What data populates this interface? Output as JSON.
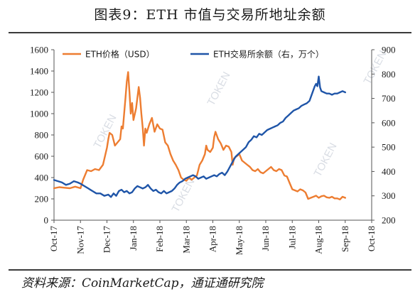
{
  "header": {
    "title": "图表9：ETH 市值与交易所地址余额"
  },
  "footer": {
    "source": "资料来源：CoinMarketCap，通证通研究院"
  },
  "watermark": {
    "text": "TOKEN"
  },
  "chart_data": {
    "type": "line",
    "x_labels": [
      "Oct-17",
      "Nov-17",
      "Dec-17",
      "Jan-18",
      "Feb-18",
      "Mar-18",
      "Apr-18",
      "May-18",
      "Jun-18",
      "Jul-18",
      "Aug-18",
      "Sep-18",
      "Oct-18"
    ],
    "left_axis": {
      "min": 0,
      "max": 1600,
      "step": 200
    },
    "right_axis": {
      "min": 200,
      "max": 900,
      "step": 100
    },
    "legend_position": "top",
    "grid": false,
    "series": [
      {
        "name": "ETH价格（USD）",
        "axis": "left",
        "color": "#ED7D31",
        "points": [
          [
            0.0,
            300
          ],
          [
            0.2,
            310
          ],
          [
            0.4,
            305
          ],
          [
            0.6,
            300
          ],
          [
            0.8,
            315
          ],
          [
            1.0,
            300
          ],
          [
            1.1,
            380
          ],
          [
            1.25,
            470
          ],
          [
            1.4,
            460
          ],
          [
            1.55,
            480
          ],
          [
            1.7,
            470
          ],
          [
            1.85,
            520
          ],
          [
            2.0,
            680
          ],
          [
            2.05,
            760
          ],
          [
            2.1,
            820
          ],
          [
            2.2,
            800
          ],
          [
            2.3,
            700
          ],
          [
            2.4,
            730
          ],
          [
            2.5,
            760
          ],
          [
            2.55,
            880
          ],
          [
            2.6,
            860
          ],
          [
            2.7,
            1150
          ],
          [
            2.75,
            1300
          ],
          [
            2.8,
            1390
          ],
          [
            2.85,
            1200
          ],
          [
            2.9,
            1000
          ],
          [
            2.95,
            1100
          ],
          [
            3.0,
            940
          ],
          [
            3.1,
            1050
          ],
          [
            3.2,
            1250
          ],
          [
            3.25,
            1150
          ],
          [
            3.3,
            1000
          ],
          [
            3.35,
            870
          ],
          [
            3.4,
            700
          ],
          [
            3.45,
            860
          ],
          [
            3.5,
            820
          ],
          [
            3.6,
            900
          ],
          [
            3.7,
            960
          ],
          [
            3.8,
            830
          ],
          [
            3.9,
            900
          ],
          [
            4.0,
            860
          ],
          [
            4.1,
            850
          ],
          [
            4.2,
            730
          ],
          [
            4.3,
            700
          ],
          [
            4.4,
            620
          ],
          [
            4.5,
            560
          ],
          [
            4.6,
            520
          ],
          [
            4.7,
            470
          ],
          [
            4.8,
            400
          ],
          [
            4.9,
            380
          ],
          [
            5.0,
            370
          ],
          [
            5.1,
            400
          ],
          [
            5.2,
            380
          ],
          [
            5.3,
            400
          ],
          [
            5.4,
            420
          ],
          [
            5.5,
            520
          ],
          [
            5.6,
            560
          ],
          [
            5.7,
            620
          ],
          [
            5.75,
            700
          ],
          [
            5.8,
            660
          ],
          [
            5.9,
            640
          ],
          [
            6.0,
            680
          ],
          [
            6.05,
            780
          ],
          [
            6.1,
            830
          ],
          [
            6.2,
            760
          ],
          [
            6.3,
            720
          ],
          [
            6.4,
            660
          ],
          [
            6.5,
            700
          ],
          [
            6.6,
            690
          ],
          [
            6.7,
            640
          ],
          [
            6.75,
            520
          ],
          [
            6.8,
            580
          ],
          [
            6.9,
            600
          ],
          [
            7.0,
            620
          ],
          [
            7.1,
            560
          ],
          [
            7.2,
            540
          ],
          [
            7.3,
            520
          ],
          [
            7.4,
            500
          ],
          [
            7.5,
            470
          ],
          [
            7.6,
            460
          ],
          [
            7.7,
            480
          ],
          [
            7.8,
            450
          ],
          [
            7.9,
            440
          ],
          [
            8.0,
            460
          ],
          [
            8.1,
            480
          ],
          [
            8.2,
            500
          ],
          [
            8.3,
            470
          ],
          [
            8.4,
            460
          ],
          [
            8.5,
            480
          ],
          [
            8.6,
            470
          ],
          [
            8.7,
            420
          ],
          [
            8.8,
            410
          ],
          [
            8.9,
            350
          ],
          [
            9.0,
            290
          ],
          [
            9.1,
            280
          ],
          [
            9.2,
            270
          ],
          [
            9.3,
            290
          ],
          [
            9.4,
            280
          ],
          [
            9.5,
            260
          ],
          [
            9.6,
            200
          ],
          [
            9.7,
            210
          ],
          [
            9.8,
            220
          ],
          [
            9.9,
            230
          ],
          [
            10.0,
            210
          ],
          [
            10.1,
            225
          ],
          [
            10.2,
            230
          ],
          [
            10.3,
            215
          ],
          [
            10.4,
            210
          ],
          [
            10.5,
            220
          ],
          [
            10.6,
            205
          ],
          [
            10.7,
            205
          ],
          [
            10.8,
            195
          ],
          [
            10.9,
            220
          ],
          [
            11.0,
            210
          ]
        ]
      },
      {
        "name": "ETH交易所余额（右，万个）",
        "axis": "right",
        "color": "#1F55A8",
        "points": [
          [
            0.0,
            365
          ],
          [
            0.15,
            360
          ],
          [
            0.3,
            355
          ],
          [
            0.45,
            345
          ],
          [
            0.6,
            350
          ],
          [
            0.75,
            360
          ],
          [
            0.9,
            355
          ],
          [
            1.0,
            350
          ],
          [
            1.15,
            340
          ],
          [
            1.3,
            330
          ],
          [
            1.45,
            320
          ],
          [
            1.6,
            310
          ],
          [
            1.75,
            310
          ],
          [
            1.9,
            300
          ],
          [
            2.05,
            305
          ],
          [
            2.15,
            295
          ],
          [
            2.25,
            310
          ],
          [
            2.35,
            300
          ],
          [
            2.45,
            320
          ],
          [
            2.55,
            325
          ],
          [
            2.65,
            315
          ],
          [
            2.75,
            320
          ],
          [
            2.85,
            310
          ],
          [
            2.95,
            315
          ],
          [
            3.05,
            330
          ],
          [
            3.15,
            340
          ],
          [
            3.25,
            335
          ],
          [
            3.35,
            330
          ],
          [
            3.45,
            335
          ],
          [
            3.55,
            345
          ],
          [
            3.65,
            330
          ],
          [
            3.75,
            320
          ],
          [
            3.85,
            325
          ],
          [
            3.95,
            315
          ],
          [
            4.05,
            310
          ],
          [
            4.15,
            320
          ],
          [
            4.25,
            310
          ],
          [
            4.35,
            315
          ],
          [
            4.45,
            320
          ],
          [
            4.55,
            330
          ],
          [
            4.65,
            345
          ],
          [
            4.75,
            355
          ],
          [
            4.85,
            360
          ],
          [
            4.95,
            370
          ],
          [
            5.05,
            375
          ],
          [
            5.15,
            380
          ],
          [
            5.25,
            385
          ],
          [
            5.35,
            380
          ],
          [
            5.45,
            370
          ],
          [
            5.55,
            375
          ],
          [
            5.65,
            380
          ],
          [
            5.75,
            370
          ],
          [
            5.85,
            375
          ],
          [
            5.95,
            380
          ],
          [
            6.05,
            385
          ],
          [
            6.15,
            380
          ],
          [
            6.25,
            390
          ],
          [
            6.35,
            395
          ],
          [
            6.45,
            385
          ],
          [
            6.55,
            400
          ],
          [
            6.65,
            420
          ],
          [
            6.75,
            440
          ],
          [
            6.85,
            460
          ],
          [
            6.95,
            470
          ],
          [
            7.05,
            480
          ],
          [
            7.15,
            490
          ],
          [
            7.25,
            500
          ],
          [
            7.35,
            520
          ],
          [
            7.45,
            530
          ],
          [
            7.55,
            545
          ],
          [
            7.65,
            540
          ],
          [
            7.75,
            555
          ],
          [
            7.85,
            550
          ],
          [
            7.95,
            560
          ],
          [
            8.05,
            570
          ],
          [
            8.15,
            575
          ],
          [
            8.25,
            580
          ],
          [
            8.35,
            585
          ],
          [
            8.45,
            590
          ],
          [
            8.55,
            600
          ],
          [
            8.65,
            605
          ],
          [
            8.75,
            620
          ],
          [
            8.85,
            630
          ],
          [
            8.95,
            640
          ],
          [
            9.05,
            650
          ],
          [
            9.15,
            655
          ],
          [
            9.25,
            660
          ],
          [
            9.35,
            670
          ],
          [
            9.45,
            675
          ],
          [
            9.55,
            680
          ],
          [
            9.65,
            690
          ],
          [
            9.75,
            720
          ],
          [
            9.85,
            750
          ],
          [
            9.9,
            760
          ],
          [
            9.95,
            750
          ],
          [
            10.0,
            790
          ],
          [
            10.05,
            745
          ],
          [
            10.1,
            730
          ],
          [
            10.2,
            725
          ],
          [
            10.3,
            720
          ],
          [
            10.4,
            720
          ],
          [
            10.5,
            715
          ],
          [
            10.6,
            720
          ],
          [
            10.7,
            720
          ],
          [
            10.8,
            725
          ],
          [
            10.9,
            730
          ],
          [
            11.0,
            725
          ]
        ]
      }
    ]
  }
}
